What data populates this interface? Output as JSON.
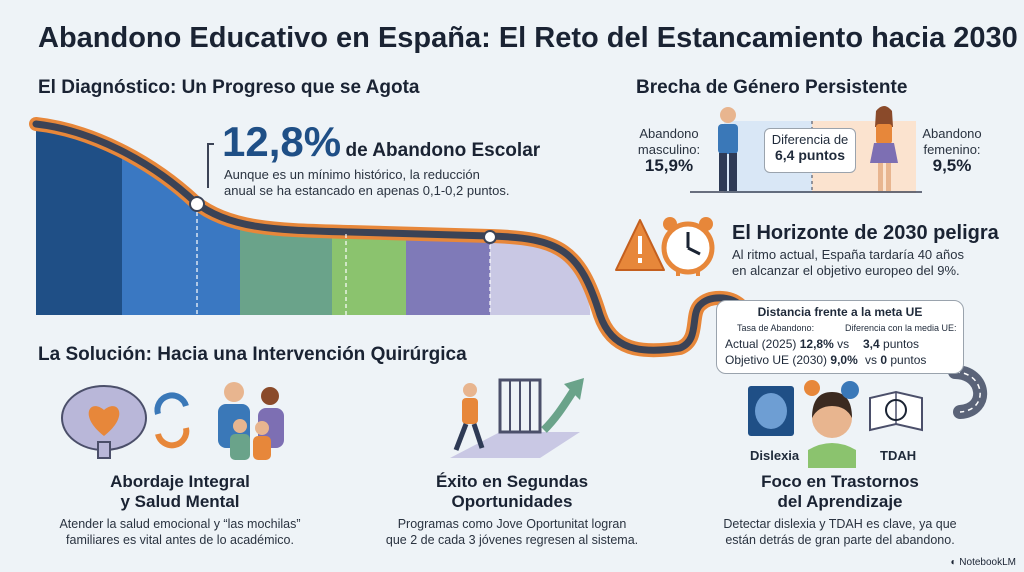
{
  "title": "Abandono Educativo en España: El Reto del Estancamiento hacia 2030",
  "diagnostico": {
    "heading": "El Diagnóstico: Un Progreso que se Agota",
    "stat_value": "12,8%",
    "stat_label": "de Abandono Escolar",
    "desc_line1": "Aunque es un mínimo histórico, la reducción",
    "desc_line2": "anual se ha estancado en apenas 0,1-0,2 puntos."
  },
  "genero": {
    "heading": "Brecha de Género Persistente",
    "male_label_1": "Abandono",
    "male_label_2": "masculino:",
    "male_value": "15,9%",
    "diff_label": "Diferencia de",
    "diff_value": "6,4 puntos",
    "female_label_1": "Abandono",
    "female_label_2": "femenino:",
    "female_value": "9,5%",
    "colors": {
      "male": "#3a78b8",
      "female": "#e7873a"
    }
  },
  "horizonte": {
    "heading": "El Horizonte de 2030 peligra",
    "line1": "Al ritmo actual, España tardaría 40 años",
    "line2": "en alcanzar el objetivo europeo del 9%."
  },
  "meta": {
    "title": "Distancia frente a la meta UE",
    "col1_header": "Tasa de Abandono:",
    "col2_header": "Diferencia con la media UE:",
    "row1_label": "Actual (2025)",
    "row1_value": "12,8%",
    "row1_vs": "vs",
    "row1_diff": "3,4",
    "row1_unit": "puntos",
    "row2_label": "Objetivo UE (2030)",
    "row2_value": "9,0%",
    "row2_vs": "vs",
    "row2_diff": "0",
    "row2_unit": "puntos"
  },
  "solucion": {
    "heading": "La Solución: Hacia una Intervención Quirúrgica",
    "items": [
      {
        "title1": "Abordaje Integral",
        "title2": "y Salud Mental",
        "desc1": "Atender la salud emocional y “las mochilas”",
        "desc2": "familiares es vital antes de lo académico."
      },
      {
        "title1": "Éxito en Segundas",
        "title2": "Oportunidades",
        "desc1": "Programas como Jove Oportunitat logran",
        "desc2": "que 2 de cada 3 jóvenes regresen al sistema."
      },
      {
        "title1": "Foco en Trastornos",
        "title2": "del Aprendizaje",
        "desc1": "Detectar dislexia y TDAH es clave, ya que",
        "desc2": "están detrás de gran parte del abandono."
      }
    ],
    "label_dislexia": "Dislexia",
    "label_tdah": "TDAH",
    "tdah_letters": "A O P H   K B   H P C X"
  },
  "brand": "NotebookLM",
  "colors": {
    "accent": "#e7873a",
    "road": "#5a6378",
    "blue_dark": "#2f5f95"
  }
}
